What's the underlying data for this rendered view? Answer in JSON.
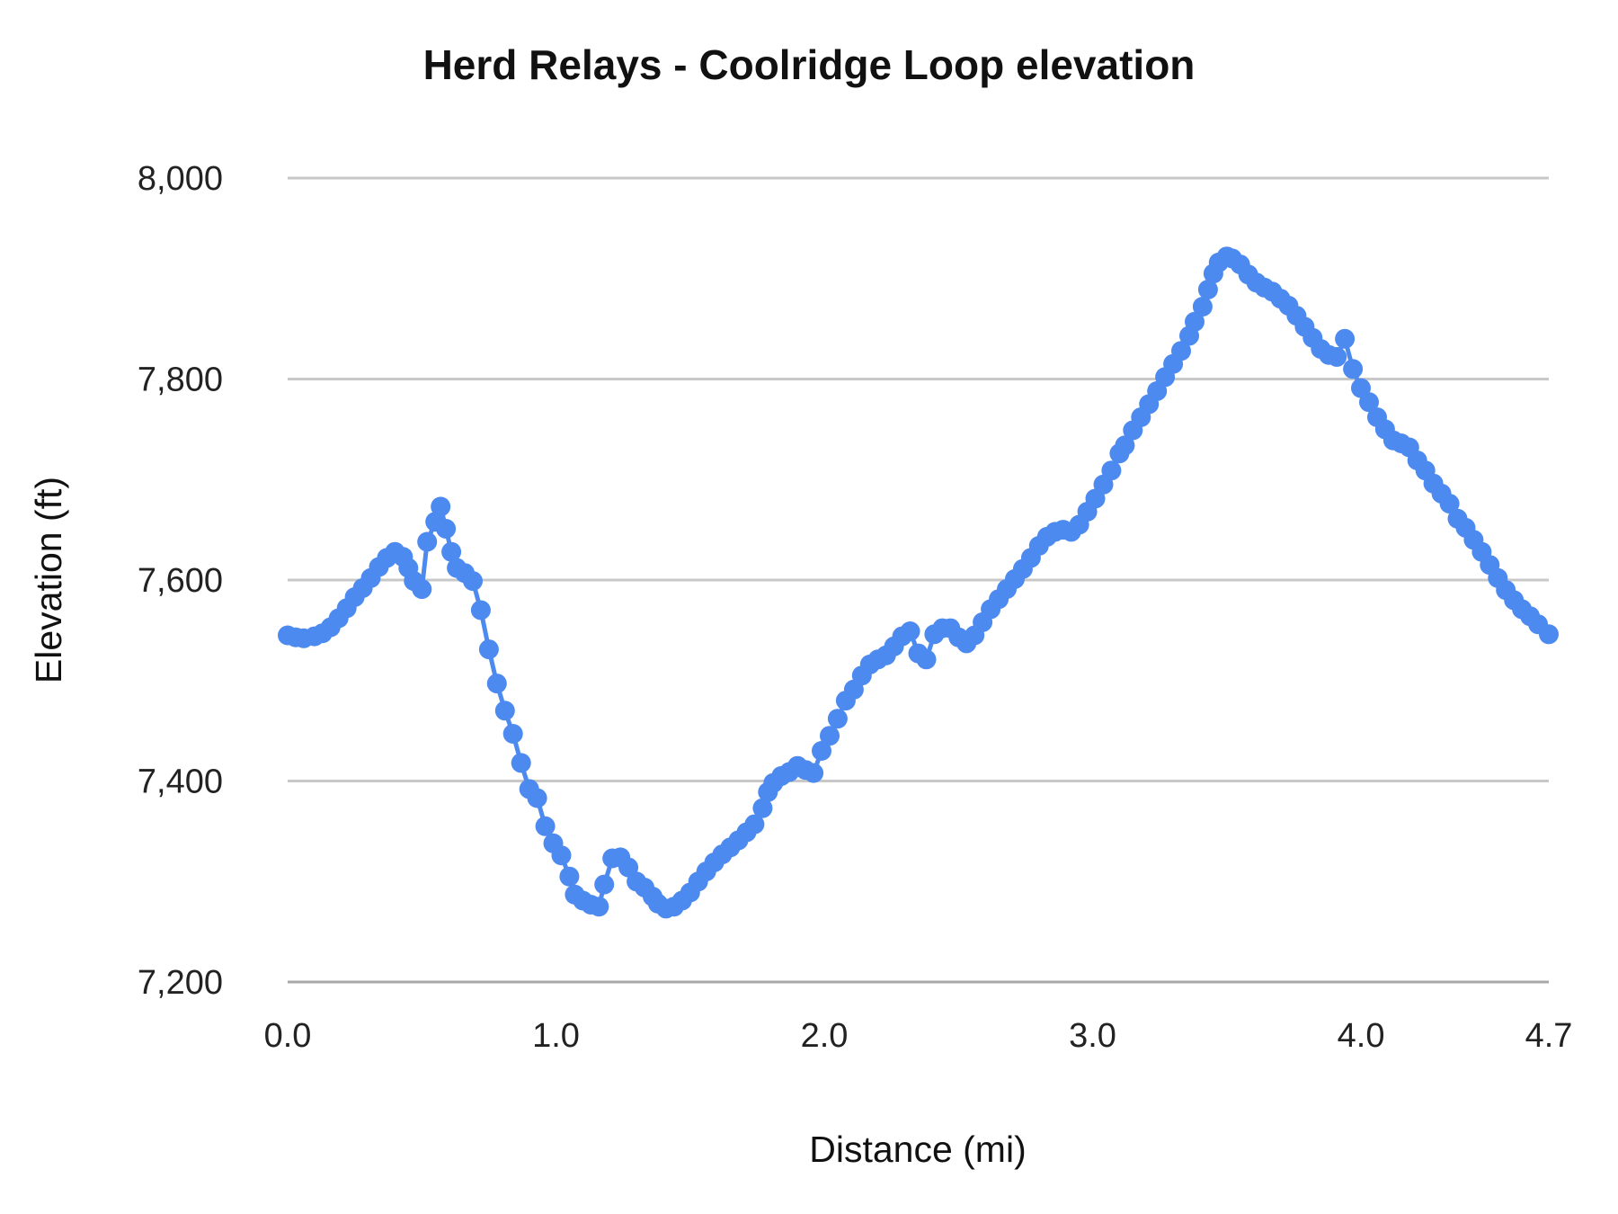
{
  "title": "Herd Relays - Coolridge Loop elevation",
  "chart_data": {
    "type": "line",
    "title": "Herd Relays - Coolridge Loop elevation",
    "xlabel": "Distance (mi)",
    "ylabel": "Elevation (ft)",
    "xlim": [
      0,
      4.7
    ],
    "ylim": [
      7200,
      8000
    ],
    "grid": "horizontal",
    "legend": "none",
    "marker": "circle",
    "series_color": "#4d8af0",
    "gridline_color": "#c8c8c8",
    "axisline_color": "#a8a8a8",
    "x_ticks": [
      {
        "value": 0.0,
        "label": "0.0"
      },
      {
        "value": 1.0,
        "label": "1.0"
      },
      {
        "value": 2.0,
        "label": "2.0"
      },
      {
        "value": 3.0,
        "label": "3.0"
      },
      {
        "value": 4.0,
        "label": "4.0"
      },
      {
        "value": 4.7,
        "label": "4.7"
      }
    ],
    "y_ticks": [
      {
        "value": 7200,
        "label": "7,200"
      },
      {
        "value": 7400,
        "label": "7,400"
      },
      {
        "value": 7600,
        "label": "7,600"
      },
      {
        "value": 7800,
        "label": "7,800"
      },
      {
        "value": 8000,
        "label": "8,000"
      }
    ],
    "points": [
      [
        0.0,
        7545
      ],
      [
        0.03,
        7543
      ],
      [
        0.06,
        7542
      ],
      [
        0.1,
        7544
      ],
      [
        0.13,
        7547
      ],
      [
        0.16,
        7553
      ],
      [
        0.19,
        7562
      ],
      [
        0.22,
        7572
      ],
      [
        0.25,
        7583
      ],
      [
        0.28,
        7592
      ],
      [
        0.31,
        7602
      ],
      [
        0.34,
        7613
      ],
      [
        0.37,
        7622
      ],
      [
        0.4,
        7628
      ],
      [
        0.43,
        7623
      ],
      [
        0.45,
        7612
      ],
      [
        0.47,
        7599
      ],
      [
        0.5,
        7591
      ],
      [
        0.52,
        7638
      ],
      [
        0.55,
        7658
      ],
      [
        0.57,
        7673
      ],
      [
        0.59,
        7651
      ],
      [
        0.61,
        7628
      ],
      [
        0.63,
        7612
      ],
      [
        0.66,
        7607
      ],
      [
        0.69,
        7599
      ],
      [
        0.72,
        7570
      ],
      [
        0.75,
        7531
      ],
      [
        0.78,
        7497
      ],
      [
        0.81,
        7470
      ],
      [
        0.84,
        7447
      ],
      [
        0.87,
        7418
      ],
      [
        0.9,
        7392
      ],
      [
        0.93,
        7383
      ],
      [
        0.96,
        7355
      ],
      [
        0.99,
        7338
      ],
      [
        1.02,
        7326
      ],
      [
        1.05,
        7305
      ],
      [
        1.07,
        7287
      ],
      [
        1.1,
        7281
      ],
      [
        1.13,
        7277
      ],
      [
        1.16,
        7275
      ],
      [
        1.18,
        7297
      ],
      [
        1.21,
        7323
      ],
      [
        1.24,
        7324
      ],
      [
        1.27,
        7314
      ],
      [
        1.3,
        7300
      ],
      [
        1.33,
        7294
      ],
      [
        1.36,
        7285
      ],
      [
        1.38,
        7278
      ],
      [
        1.41,
        7273
      ],
      [
        1.44,
        7275
      ],
      [
        1.47,
        7281
      ],
      [
        1.5,
        7289
      ],
      [
        1.53,
        7300
      ],
      [
        1.56,
        7310
      ],
      [
        1.59,
        7319
      ],
      [
        1.62,
        7327
      ],
      [
        1.65,
        7334
      ],
      [
        1.68,
        7341
      ],
      [
        1.71,
        7349
      ],
      [
        1.74,
        7357
      ],
      [
        1.77,
        7373
      ],
      [
        1.79,
        7389
      ],
      [
        1.81,
        7398
      ],
      [
        1.84,
        7405
      ],
      [
        1.87,
        7409
      ],
      [
        1.9,
        7415
      ],
      [
        1.93,
        7411
      ],
      [
        1.96,
        7408
      ],
      [
        1.99,
        7430
      ],
      [
        2.02,
        7445
      ],
      [
        2.05,
        7462
      ],
      [
        2.08,
        7480
      ],
      [
        2.11,
        7491
      ],
      [
        2.14,
        7505
      ],
      [
        2.17,
        7516
      ],
      [
        2.2,
        7521
      ],
      [
        2.23,
        7525
      ],
      [
        2.26,
        7534
      ],
      [
        2.29,
        7544
      ],
      [
        2.32,
        7549
      ],
      [
        2.35,
        7527
      ],
      [
        2.38,
        7521
      ],
      [
        2.41,
        7546
      ],
      [
        2.44,
        7552
      ],
      [
        2.47,
        7552
      ],
      [
        2.5,
        7543
      ],
      [
        2.53,
        7537
      ],
      [
        2.56,
        7545
      ],
      [
        2.59,
        7558
      ],
      [
        2.62,
        7571
      ],
      [
        2.65,
        7581
      ],
      [
        2.68,
        7591
      ],
      [
        2.71,
        7601
      ],
      [
        2.74,
        7611
      ],
      [
        2.77,
        7622
      ],
      [
        2.8,
        7634
      ],
      [
        2.83,
        7643
      ],
      [
        2.86,
        7648
      ],
      [
        2.89,
        7650
      ],
      [
        2.92,
        7648
      ],
      [
        2.95,
        7655
      ],
      [
        2.98,
        7668
      ],
      [
        3.01,
        7681
      ],
      [
        3.04,
        7695
      ],
      [
        3.07,
        7709
      ],
      [
        3.1,
        7726
      ],
      [
        3.12,
        7734
      ],
      [
        3.15,
        7749
      ],
      [
        3.18,
        7762
      ],
      [
        3.21,
        7775
      ],
      [
        3.24,
        7788
      ],
      [
        3.27,
        7802
      ],
      [
        3.3,
        7815
      ],
      [
        3.33,
        7828
      ],
      [
        3.36,
        7843
      ],
      [
        3.38,
        7857
      ],
      [
        3.41,
        7872
      ],
      [
        3.43,
        7889
      ],
      [
        3.45,
        7905
      ],
      [
        3.47,
        7916
      ],
      [
        3.5,
        7922
      ],
      [
        3.52,
        7920
      ],
      [
        3.55,
        7914
      ],
      [
        3.58,
        7904
      ],
      [
        3.61,
        7896
      ],
      [
        3.64,
        7891
      ],
      [
        3.67,
        7887
      ],
      [
        3.7,
        7880
      ],
      [
        3.73,
        7873
      ],
      [
        3.76,
        7863
      ],
      [
        3.79,
        7852
      ],
      [
        3.82,
        7841
      ],
      [
        3.85,
        7830
      ],
      [
        3.88,
        7824
      ],
      [
        3.91,
        7822
      ],
      [
        3.94,
        7840
      ],
      [
        3.97,
        7810
      ],
      [
        4.0,
        7791
      ],
      [
        4.03,
        7777
      ],
      [
        4.06,
        7762
      ],
      [
        4.09,
        7750
      ],
      [
        4.12,
        7739
      ],
      [
        4.15,
        7736
      ],
      [
        4.18,
        7732
      ],
      [
        4.21,
        7719
      ],
      [
        4.24,
        7709
      ],
      [
        4.27,
        7696
      ],
      [
        4.3,
        7686
      ],
      [
        4.33,
        7676
      ],
      [
        4.36,
        7661
      ],
      [
        4.39,
        7652
      ],
      [
        4.42,
        7640
      ],
      [
        4.45,
        7628
      ],
      [
        4.48,
        7615
      ],
      [
        4.51,
        7602
      ],
      [
        4.54,
        7590
      ],
      [
        4.57,
        7580
      ],
      [
        4.6,
        7571
      ],
      [
        4.63,
        7564
      ],
      [
        4.66,
        7556
      ],
      [
        4.7,
        7546
      ]
    ]
  }
}
